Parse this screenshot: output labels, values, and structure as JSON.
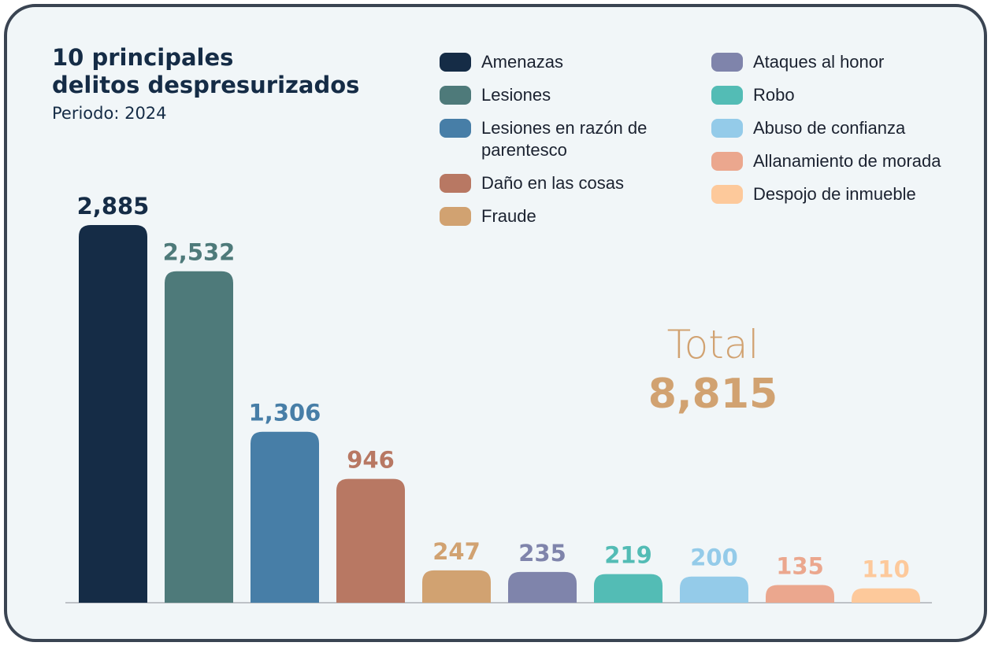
{
  "chart_data": {
    "type": "bar",
    "title": "10 principales\ndelitos despresurizados",
    "subtitle": "Periodo: 2024",
    "categories": [
      "Amenazas",
      "Lesiones",
      "Lesiones en razón de parentesco",
      "Daño en las cosas",
      "Fraude",
      "Ataques al honor",
      "Robo",
      "Abuso de confianza",
      "Allanamiento de morada",
      "Despojo de inmueble"
    ],
    "values": [
      2885,
      2532,
      1306,
      946,
      247,
      235,
      219,
      200,
      135,
      110
    ],
    "value_labels": [
      "2,885",
      "2,532",
      "1,306",
      "946",
      "247",
      "235",
      "219",
      "200",
      "135",
      "110"
    ],
    "colors": [
      "#152c46",
      "#4e7a7a",
      "#477ea7",
      "#b87863",
      "#d1a271",
      "#7f84ab",
      "#53bcb5",
      "#94cbe9",
      "#eba78e",
      "#fdc99b"
    ],
    "total": {
      "label": "Total",
      "value": 8815,
      "value_label": "8,815",
      "color": "#d1a271"
    }
  }
}
